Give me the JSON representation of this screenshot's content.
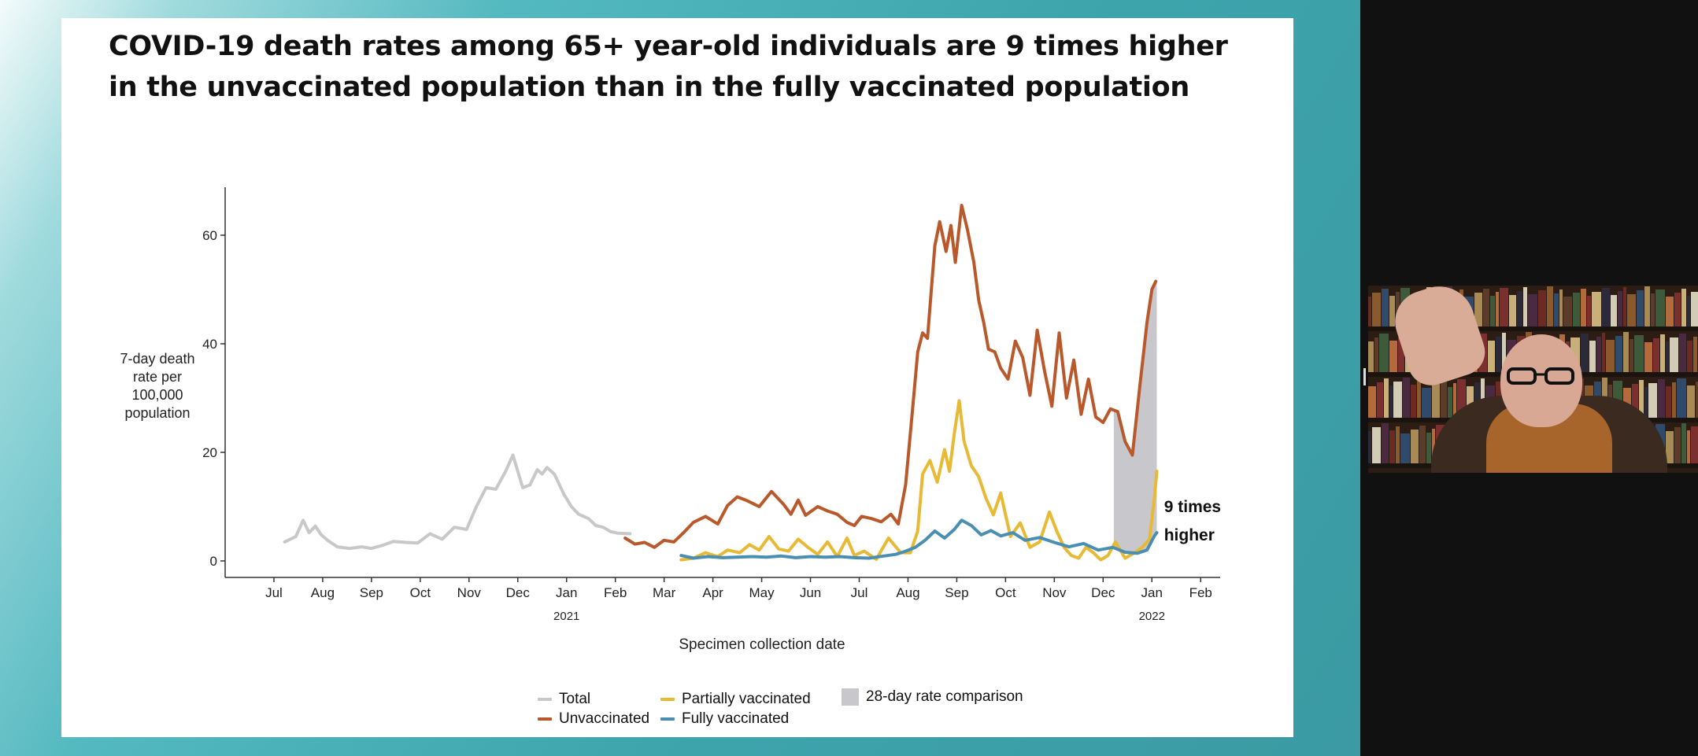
{
  "slide": {
    "title": "COVID-19 death rates among 65+ year-old individuals are 9 times higher in the unvaccinated population than in the fully vaccinated population"
  },
  "colors": {
    "total": "#c8c8c8",
    "unvaccinated": "#b9592b",
    "partially_vaccinated": "#e8b934",
    "fully_vaccinated": "#4a8fb1",
    "comparison": "#c8c7cc"
  },
  "chart_data": {
    "type": "line",
    "title": "",
    "ylabel": "7-day death rate per 100,000 population",
    "xlabel": "Specimen collection date",
    "ylim": [
      0,
      69
    ],
    "yticks": [
      0,
      20,
      40,
      60
    ],
    "x_domain": [
      0,
      20.4
    ],
    "xticks": [
      {
        "label": "Jul",
        "x": 1
      },
      {
        "label": "Aug",
        "x": 2
      },
      {
        "label": "Sep",
        "x": 3
      },
      {
        "label": "Oct",
        "x": 4
      },
      {
        "label": "Nov",
        "x": 5
      },
      {
        "label": "Dec",
        "x": 6
      },
      {
        "label": "Jan",
        "x": 7
      },
      {
        "label": "Feb",
        "x": 8
      },
      {
        "label": "Mar",
        "x": 9
      },
      {
        "label": "Apr",
        "x": 10
      },
      {
        "label": "May",
        "x": 11
      },
      {
        "label": "Jun",
        "x": 12
      },
      {
        "label": "Jul",
        "x": 13
      },
      {
        "label": "Aug",
        "x": 14
      },
      {
        "label": "Sep",
        "x": 15
      },
      {
        "label": "Oct",
        "x": 16
      },
      {
        "label": "Nov",
        "x": 17
      },
      {
        "label": "Dec",
        "x": 18
      },
      {
        "label": "Jan",
        "x": 19
      },
      {
        "label": "Feb",
        "x": 20
      }
    ],
    "year_labels": [
      {
        "label": "2021",
        "x": 7
      },
      {
        "label": "2022",
        "x": 19
      }
    ],
    "annotation": {
      "text_line1": "9 times",
      "text_line2": "higher",
      "x": 19.25,
      "y": 9
    },
    "comparison_region": {
      "x_start": 18.22,
      "x_end": 19.1
    },
    "series": [
      {
        "name": "Total",
        "color_key": "total",
        "x": [
          1.22,
          1.45,
          1.6,
          1.72,
          1.85,
          1.97,
          2.1,
          2.3,
          2.55,
          2.8,
          3.0,
          3.2,
          3.45,
          3.7,
          3.95,
          4.2,
          4.45,
          4.7,
          4.95,
          5.15,
          5.35,
          5.55,
          5.75,
          5.9,
          6.1,
          6.25,
          6.4,
          6.5,
          6.6,
          6.75,
          6.95,
          7.1,
          7.25,
          7.45,
          7.6,
          7.75,
          7.9,
          8.05,
          8.3
        ],
        "y": [
          3.5,
          4.5,
          7.5,
          5.2,
          6.4,
          4.8,
          3.8,
          2.6,
          2.3,
          2.6,
          2.3,
          2.8,
          3.6,
          3.4,
          3.3,
          5.0,
          4.0,
          6.2,
          5.8,
          10.0,
          13.5,
          13.2,
          16.5,
          19.5,
          13.5,
          14.0,
          16.8,
          16.0,
          17.2,
          16.0,
          12.2,
          10.0,
          8.6,
          7.8,
          6.5,
          6.2,
          5.4,
          5.1,
          5.0
        ]
      },
      {
        "name": "Unvaccinated",
        "color_key": "unvaccinated",
        "x": [
          8.2,
          8.4,
          8.6,
          8.8,
          9.0,
          9.2,
          9.4,
          9.6,
          9.85,
          10.1,
          10.3,
          10.5,
          10.7,
          10.95,
          11.2,
          11.45,
          11.6,
          11.75,
          11.9,
          12.15,
          12.35,
          12.55,
          12.75,
          12.9,
          13.05,
          13.25,
          13.45,
          13.65,
          13.8,
          13.95,
          14.1,
          14.2,
          14.3,
          14.4,
          14.55,
          14.65,
          14.78,
          14.88,
          14.97,
          15.1,
          15.22,
          15.35,
          15.45,
          15.55,
          15.65,
          15.78,
          15.9,
          16.05,
          16.2,
          16.35,
          16.5,
          16.65,
          16.8,
          16.95,
          17.1,
          17.25,
          17.4,
          17.55,
          17.7,
          17.85,
          18.0,
          18.15,
          18.3,
          18.45,
          18.6,
          18.75,
          18.9,
          19.0,
          19.08
        ],
        "y": [
          4.2,
          3.1,
          3.4,
          2.5,
          3.8,
          3.5,
          5.2,
          7.1,
          8.2,
          6.8,
          10.2,
          11.8,
          11.1,
          10.0,
          12.8,
          10.4,
          8.6,
          11.2,
          8.4,
          10.0,
          9.2,
          8.6,
          7.1,
          6.5,
          8.2,
          7.8,
          7.2,
          8.6,
          6.8,
          14.0,
          28.5,
          38.5,
          42.0,
          41.0,
          58.0,
          62.5,
          57.0,
          61.8,
          55.0,
          65.5,
          61.0,
          55.0,
          48.0,
          44.0,
          39.0,
          38.5,
          35.5,
          33.5,
          40.5,
          37.5,
          30.5,
          42.5,
          35.0,
          28.5,
          42.0,
          30.0,
          37.0,
          27.0,
          33.5,
          26.5,
          25.5,
          28.0,
          27.5,
          22.0,
          19.5,
          32.0,
          44.0,
          50.0,
          51.5
        ]
      },
      {
        "name": "Partially vaccinated",
        "color_key": "partially_vaccinated",
        "x": [
          9.35,
          9.6,
          9.85,
          10.1,
          10.3,
          10.55,
          10.75,
          10.95,
          11.15,
          11.35,
          11.55,
          11.75,
          11.95,
          12.15,
          12.35,
          12.55,
          12.75,
          12.9,
          13.1,
          13.35,
          13.6,
          13.85,
          14.05,
          14.2,
          14.3,
          14.45,
          14.6,
          14.75,
          14.85,
          14.95,
          15.05,
          15.15,
          15.3,
          15.45,
          15.6,
          15.75,
          15.9,
          16.1,
          16.3,
          16.5,
          16.7,
          16.9,
          17.05,
          17.2,
          17.35,
          17.5,
          17.65,
          17.8,
          17.95,
          18.1,
          18.25,
          18.45,
          18.65,
          18.8,
          18.95,
          19.05,
          19.1
        ],
        "y": [
          0.2,
          0.5,
          1.5,
          0.8,
          2.0,
          1.5,
          3.0,
          2.0,
          4.5,
          2.2,
          1.8,
          4.0,
          2.5,
          1.2,
          3.5,
          0.8,
          4.2,
          1.0,
          1.8,
          0.3,
          4.2,
          1.5,
          1.5,
          5.5,
          16.0,
          18.5,
          14.5,
          20.5,
          16.5,
          23.5,
          29.5,
          22.0,
          17.5,
          15.5,
          11.5,
          8.5,
          12.5,
          4.5,
          7.0,
          2.5,
          3.5,
          9.0,
          5.5,
          2.5,
          1.0,
          0.5,
          2.5,
          1.5,
          0.2,
          1.0,
          3.5,
          0.5,
          1.5,
          2.5,
          4.0,
          11.5,
          16.5
        ]
      },
      {
        "name": "Fully vaccinated",
        "color_key": "fully_vaccinated",
        "x": [
          9.35,
          9.6,
          9.9,
          10.2,
          10.5,
          10.8,
          11.1,
          11.4,
          11.7,
          12.0,
          12.3,
          12.6,
          12.9,
          13.2,
          13.5,
          13.75,
          13.95,
          14.15,
          14.35,
          14.55,
          14.75,
          14.95,
          15.1,
          15.3,
          15.5,
          15.7,
          15.9,
          16.15,
          16.4,
          16.7,
          17.0,
          17.3,
          17.6,
          17.9,
          18.2,
          18.45,
          18.7,
          18.9,
          19.05,
          19.1
        ],
        "y": [
          1.0,
          0.5,
          0.8,
          0.6,
          0.7,
          0.8,
          0.7,
          0.9,
          0.6,
          0.8,
          0.7,
          0.8,
          0.6,
          0.5,
          0.9,
          1.2,
          1.8,
          2.5,
          3.8,
          5.5,
          4.2,
          5.8,
          7.5,
          6.5,
          4.8,
          5.6,
          4.6,
          5.2,
          3.8,
          4.3,
          3.4,
          2.6,
          3.2,
          2.0,
          2.5,
          1.6,
          1.4,
          2.0,
          4.6,
          5.2
        ]
      }
    ]
  },
  "legend": {
    "items": [
      {
        "label": "Total",
        "color_key": "total"
      },
      {
        "label": "Unvaccinated",
        "color_key": "unvaccinated"
      },
      {
        "label": "Partially vaccinated",
        "color_key": "partially_vaccinated"
      },
      {
        "label": "Fully vaccinated",
        "color_key": "fully_vaccinated"
      },
      {
        "label": "28-day rate comparison",
        "color_key": "comparison"
      }
    ]
  }
}
